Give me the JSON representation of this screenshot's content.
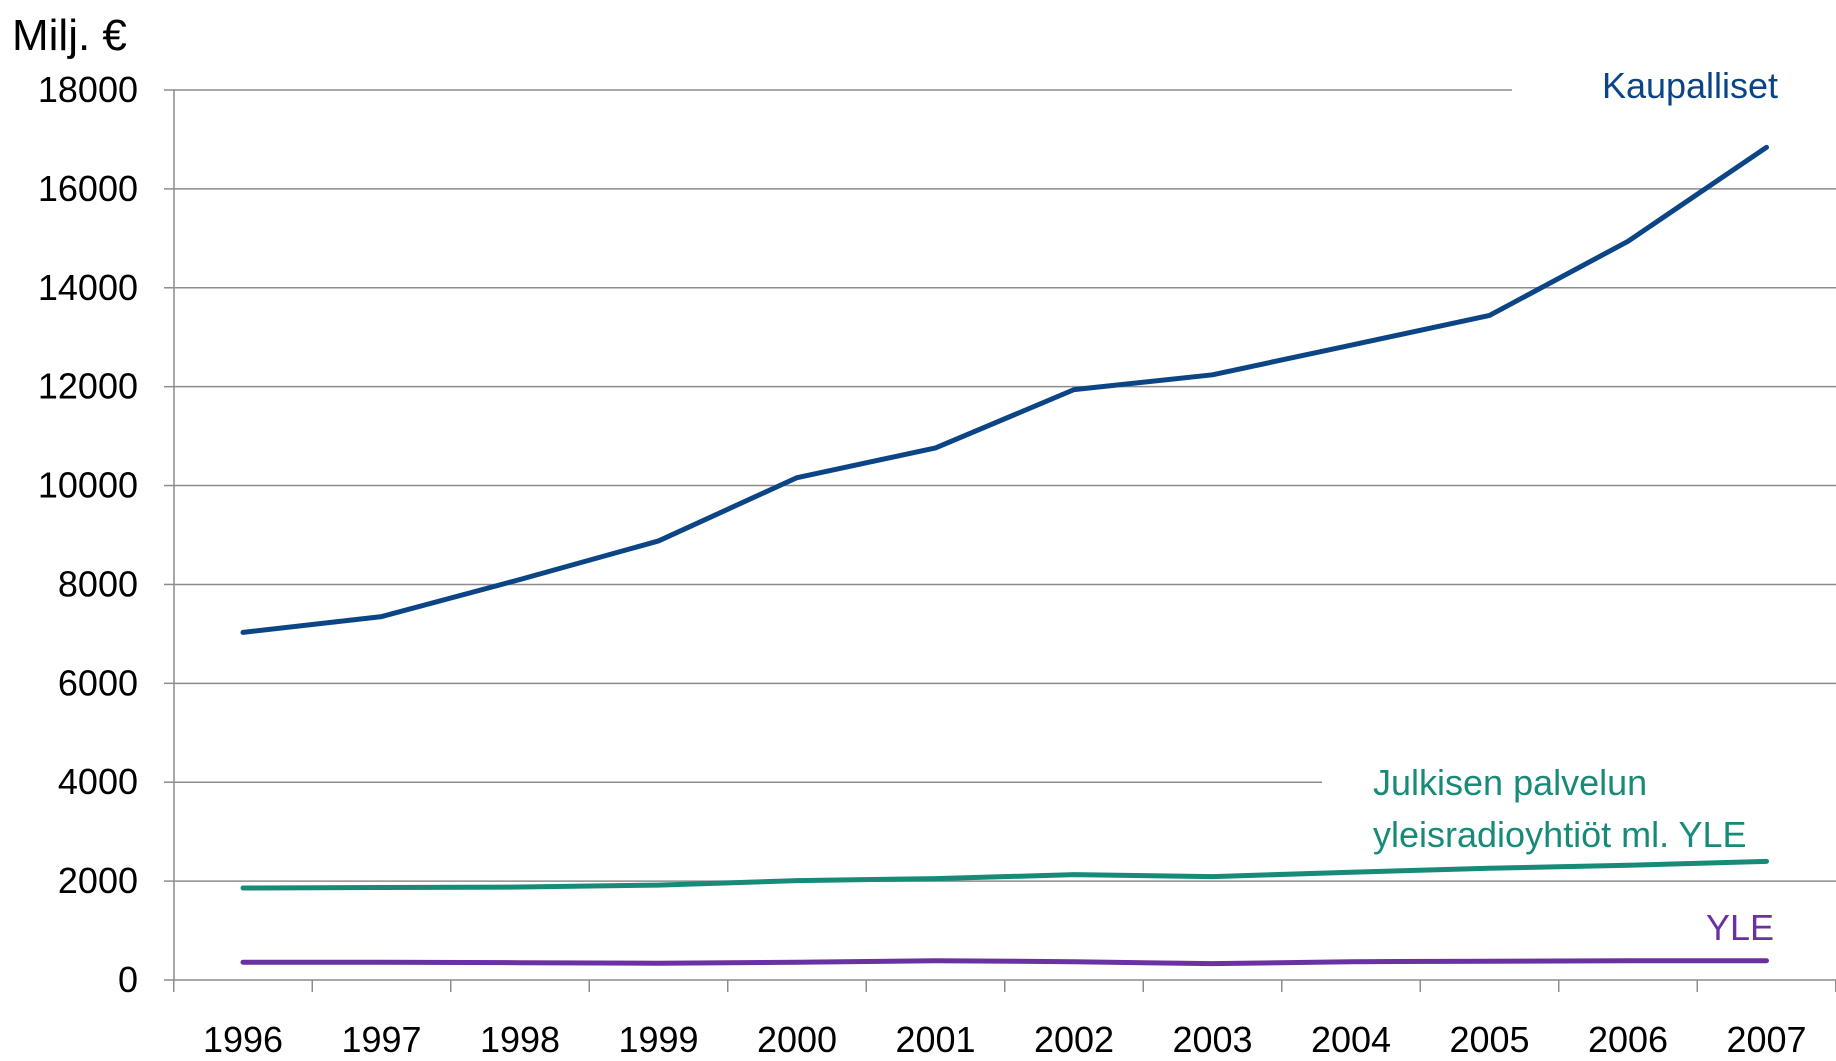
{
  "chart_data": {
    "type": "line",
    "ylabel": "Milj. €",
    "ylim": [
      0,
      18000
    ],
    "yticks": [
      0,
      2000,
      4000,
      6000,
      8000,
      10000,
      12000,
      14000,
      16000,
      18000
    ],
    "categories": [
      "1996",
      "1997",
      "1998",
      "1999",
      "2000",
      "2001",
      "2002",
      "2003",
      "2004",
      "2005",
      "2006",
      "2007"
    ],
    "grid": true,
    "series": [
      {
        "name": "Kaupalliset",
        "label_lines": [
          "Kaupalliset"
        ],
        "color": "#0b4586",
        "values": [
          7030,
          7350,
          8100,
          8880,
          10160,
          10760,
          11940,
          12240,
          12840,
          13440,
          14940,
          16840
        ]
      },
      {
        "name": "Julkisen palvelun yleisradioyhtiöt ml. YLE",
        "label_lines": [
          "Julkisen palvelun",
          "yleisradioyhtiöt ml. YLE"
        ],
        "color": "#178a78",
        "values": [
          1860,
          1870,
          1880,
          1920,
          2010,
          2050,
          2130,
          2090,
          2180,
          2260,
          2320,
          2400
        ]
      },
      {
        "name": "YLE",
        "label_lines": [
          "YLE"
        ],
        "color": "#6a32a0",
        "values": [
          360,
          360,
          350,
          340,
          360,
          390,
          370,
          330,
          370,
          380,
          390,
          390
        ]
      }
    ]
  }
}
